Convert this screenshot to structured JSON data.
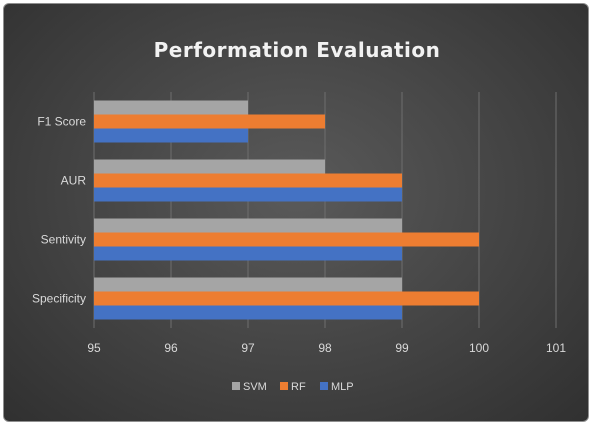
{
  "chart_data": {
    "type": "bar",
    "orientation": "horizontal",
    "title": "Performation Evaluation",
    "categories": [
      "F1 Score",
      "AUR",
      "Sentivity",
      "Specificity"
    ],
    "series": [
      {
        "name": "SVM",
        "color": "#a5a5a5",
        "values": [
          97,
          98,
          99,
          99
        ]
      },
      {
        "name": "RF",
        "color": "#ed7d31",
        "values": [
          98,
          99,
          100,
          100
        ]
      },
      {
        "name": "MLP",
        "color": "#4472c4",
        "values": [
          97,
          99,
          99,
          99
        ]
      }
    ],
    "xlim": [
      95,
      101
    ],
    "xticks": [
      "95",
      "96",
      "97",
      "98",
      "99",
      "100",
      "101"
    ],
    "grid": "vertical",
    "legend": "bottom"
  }
}
